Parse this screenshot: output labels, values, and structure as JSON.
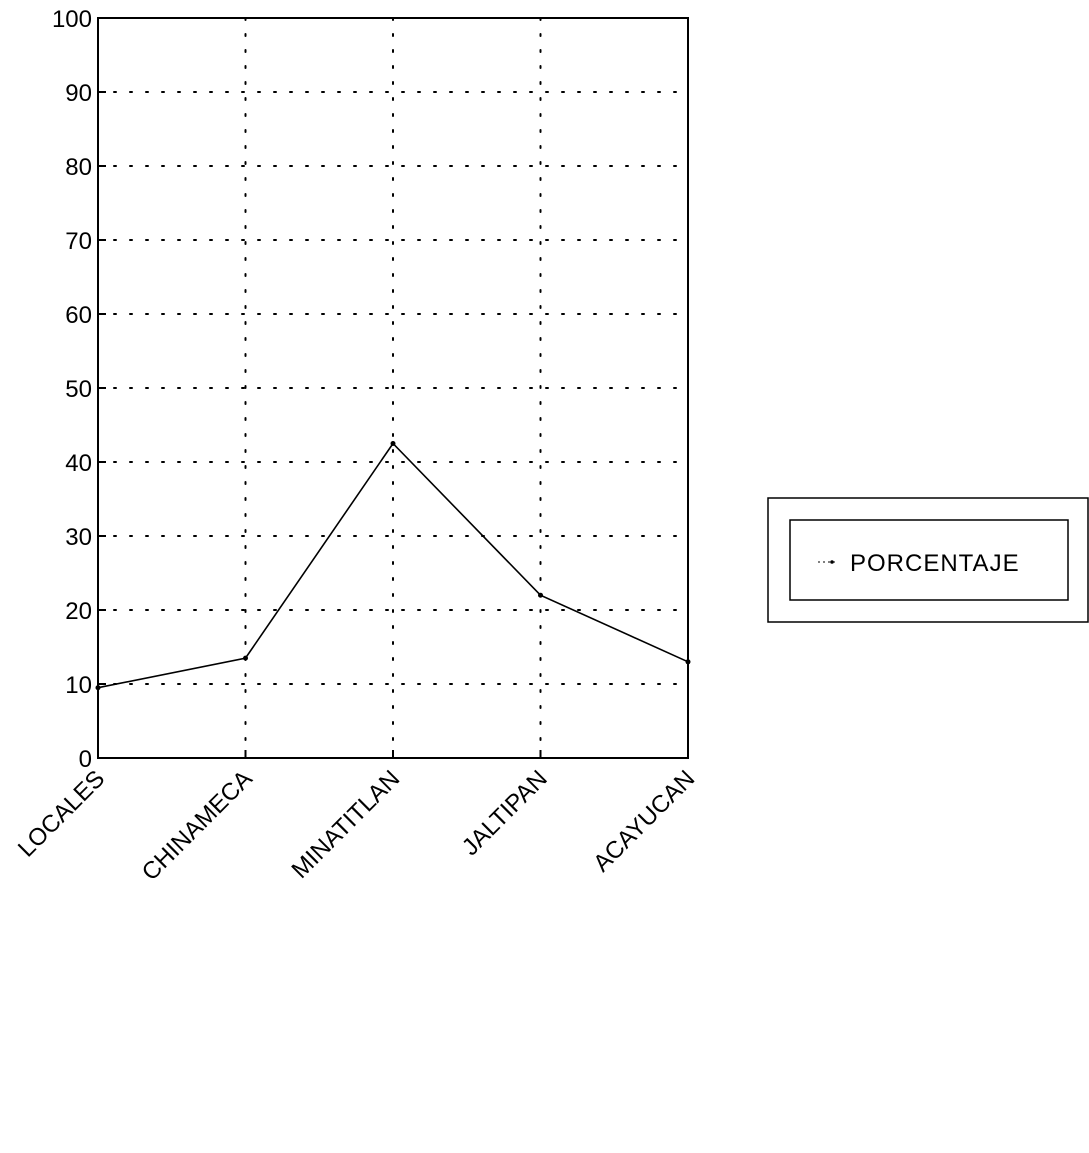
{
  "chart_data": {
    "type": "line",
    "categories": [
      "LOCALES",
      "CHINAMECA",
      "MINATITLAN",
      "JALTIPAN",
      "ACAYUCAN"
    ],
    "series": [
      {
        "name": "PORCENTAJE",
        "values": [
          9.5,
          13.5,
          42.5,
          22,
          13
        ]
      }
    ],
    "yticks": [
      "0",
      "10",
      "20",
      "30",
      "40",
      "50",
      "60",
      "70",
      "80",
      "90",
      "100"
    ],
    "ylim": [
      0,
      100
    ],
    "grid": true,
    "legend_position": "right"
  },
  "colors": {
    "line": "#000000",
    "grid": "#000000",
    "background": "#ffffff"
  }
}
